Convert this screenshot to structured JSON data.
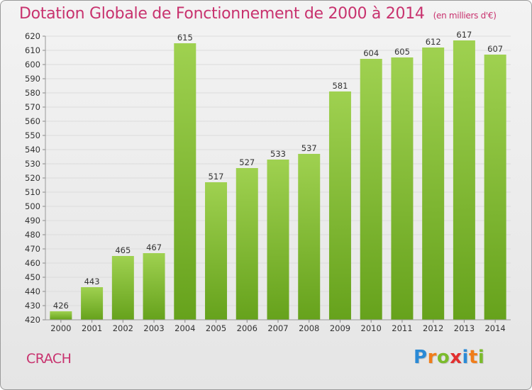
{
  "header": {
    "title": "Dotation Globale de Fonctionnement de 2000 à 2014",
    "unit": "(en milliers d'€)"
  },
  "commune": "CRACH",
  "logo": {
    "letters": [
      "P",
      "r",
      "o",
      "x",
      "i",
      "t",
      "i"
    ],
    "colors": [
      "#2a8ad6",
      "#f07d1a",
      "#7bbb2c",
      "#e23030",
      "#2a8ad6",
      "#f07d1a",
      "#7bbb2c"
    ]
  },
  "chart_data": {
    "type": "bar",
    "categories": [
      "2000",
      "2001",
      "2002",
      "2003",
      "2004",
      "2005",
      "2006",
      "2007",
      "2008",
      "2009",
      "2010",
      "2011",
      "2012",
      "2013",
      "2014"
    ],
    "values": [
      426,
      443,
      465,
      467,
      615,
      517,
      527,
      533,
      537,
      581,
      604,
      605,
      612,
      617,
      607
    ],
    "ylim": [
      420,
      620
    ],
    "yticks": [
      420,
      430,
      440,
      450,
      460,
      470,
      480,
      490,
      500,
      510,
      520,
      530,
      540,
      550,
      560,
      570,
      580,
      590,
      600,
      610,
      620
    ],
    "grid": true,
    "colors": {
      "bar_top": "#9fd150",
      "bar_bottom": "#66a21c",
      "grid": "#dcdcdc",
      "axis_text": "#333333"
    }
  }
}
